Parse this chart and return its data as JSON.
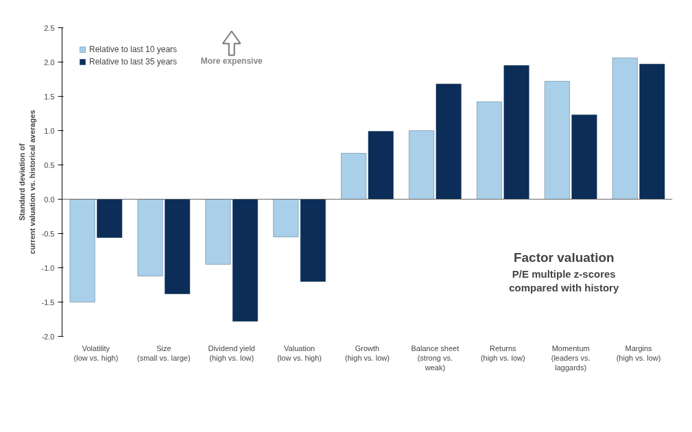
{
  "chart_data": {
    "type": "bar",
    "title": "Factor valuation",
    "subtitle": "P/E multiple z-scores\ncompared with history",
    "ylabel": "Standard deviation of\ncurrent valuation vs. historical averages",
    "categories": [
      "Volatility\n(low vs. high)",
      "Size\n(small vs. large)",
      "Dividend yield\n(high vs. low)",
      "Valuation\n(low vs. high)",
      "Growth\n(high vs. low)",
      "Balance sheet\n(strong vs.\nweak)",
      "Returns\n(high vs. low)",
      "Momentum\n(leaders vs.\nlaggards)",
      "Margins\n(high vs. low)"
    ],
    "series": [
      {
        "name": "Relative to last 10 years",
        "color": "#a9cfe9",
        "values": [
          -1.5,
          -1.12,
          -0.95,
          -0.55,
          0.67,
          1.0,
          1.42,
          1.72,
          2.06
        ]
      },
      {
        "name": "Relative to last 35 years",
        "color": "#0b2d57",
        "values": [
          -0.56,
          -1.38,
          -1.78,
          -1.2,
          0.99,
          1.68,
          1.95,
          1.23,
          1.97
        ]
      }
    ],
    "ylim": [
      -2.0,
      2.5
    ],
    "yticks": [
      {
        "value": -2.0,
        "label": "-2.0"
      },
      {
        "value": -1.5,
        "label": "-1.5"
      },
      {
        "value": -1.0,
        "label": "-1.0"
      },
      {
        "value": -0.5,
        "label": "-0.5"
      },
      {
        "value": 0,
        "label": "0.0"
      },
      {
        "value": 0.5,
        "label": "0.5"
      },
      {
        "value": 1.0,
        "label": "1.0"
      },
      {
        "value": 1.5,
        "label": "1.5"
      },
      {
        "value": 2.0,
        "label": "2.0"
      },
      {
        "value": 2.5,
        "label": "2.5"
      }
    ],
    "annotations": [
      "More expensive"
    ],
    "legend": "top left"
  }
}
